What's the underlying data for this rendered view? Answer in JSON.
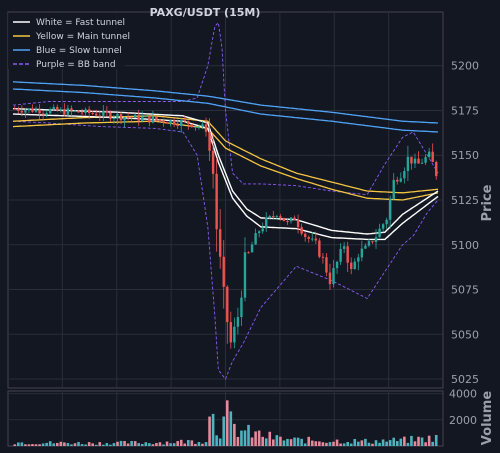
{
  "chart_data": {
    "type": "candlestick",
    "title": "PAXG/USDT (15M)",
    "price_label": "Price",
    "volume_label": "Volume",
    "ylim": [
      5020,
      5230
    ],
    "yticks": [
      5025,
      5050,
      5075,
      5100,
      5125,
      5150,
      5175,
      5200
    ],
    "vol_ylim": [
      0,
      4200
    ],
    "vol_ticks": [
      2000,
      4000
    ],
    "grid": true,
    "legend_position": "top-left",
    "legend": [
      {
        "label": "White = Fast tunnel",
        "color": "#ffffff",
        "dashed": false
      },
      {
        "label": "Yellow = Main tunnel",
        "color": "#f5c542",
        "dashed": false
      },
      {
        "label": "Blue = Slow tunnel",
        "color": "#4fa3f7",
        "dashed": false
      },
      {
        "label": "Purple = BB band",
        "color": "#8a5cf6",
        "dashed": true
      }
    ],
    "colors": {
      "up": "#26a69a",
      "down": "#ef5350",
      "vol_up": "#4fb3bf",
      "vol_down": "#e58a9a",
      "grid": "#2a2e39",
      "background": "#131722"
    },
    "n_bars": 120,
    "price_anchors": [
      [
        0,
        5176
      ],
      [
        20,
        5174
      ],
      [
        40,
        5170
      ],
      [
        50,
        5168
      ],
      [
        55,
        5165
      ],
      [
        57,
        5140
      ],
      [
        58,
        5110
      ],
      [
        60,
        5070
      ],
      [
        62,
        5045
      ],
      [
        64,
        5060
      ],
      [
        66,
        5090
      ],
      [
        68,
        5100
      ],
      [
        70,
        5108
      ],
      [
        72,
        5113
      ],
      [
        75,
        5118
      ],
      [
        78,
        5112
      ],
      [
        80,
        5115
      ],
      [
        83,
        5105
      ],
      [
        86,
        5100
      ],
      [
        88,
        5092
      ],
      [
        90,
        5080
      ],
      [
        92,
        5090
      ],
      [
        94,
        5100
      ],
      [
        96,
        5085
      ],
      [
        98,
        5095
      ],
      [
        100,
        5098
      ],
      [
        103,
        5105
      ],
      [
        106,
        5115
      ],
      [
        108,
        5135
      ],
      [
        110,
        5140
      ],
      [
        112,
        5148
      ],
      [
        115,
        5145
      ],
      [
        118,
        5150
      ],
      [
        120,
        5140
      ]
    ],
    "volume_anchors": [
      [
        0,
        300
      ],
      [
        20,
        250
      ],
      [
        40,
        300
      ],
      [
        50,
        400
      ],
      [
        54,
        500
      ],
      [
        56,
        3900
      ],
      [
        57,
        1800
      ],
      [
        58,
        1500
      ],
      [
        60,
        2500
      ],
      [
        62,
        1500
      ],
      [
        65,
        1200
      ],
      [
        70,
        900
      ],
      [
        75,
        600
      ],
      [
        80,
        500
      ],
      [
        90,
        450
      ],
      [
        100,
        400
      ],
      [
        110,
        500
      ],
      [
        120,
        700
      ]
    ],
    "tunnels": {
      "slow_upper": [
        [
          0,
          5191
        ],
        [
          20,
          5189
        ],
        [
          40,
          5186
        ],
        [
          55,
          5183
        ],
        [
          70,
          5178
        ],
        [
          90,
          5174
        ],
        [
          110,
          5169
        ],
        [
          120,
          5168
        ]
      ],
      "slow_lower": [
        [
          0,
          5187
        ],
        [
          20,
          5185
        ],
        [
          40,
          5182
        ],
        [
          55,
          5179
        ],
        [
          70,
          5173
        ],
        [
          90,
          5169
        ],
        [
          110,
          5164
        ],
        [
          120,
          5163
        ]
      ],
      "main_upper": [
        [
          0,
          5169
        ],
        [
          20,
          5171
        ],
        [
          40,
          5172
        ],
        [
          55,
          5169
        ],
        [
          60,
          5158
        ],
        [
          70,
          5148
        ],
        [
          80,
          5140
        ],
        [
          90,
          5135
        ],
        [
          100,
          5130
        ],
        [
          110,
          5129
        ],
        [
          120,
          5131
        ]
      ],
      "main_lower": [
        [
          0,
          5166
        ],
        [
          20,
          5168
        ],
        [
          40,
          5169
        ],
        [
          55,
          5165
        ],
        [
          60,
          5154
        ],
        [
          70,
          5144
        ],
        [
          80,
          5137
        ],
        [
          90,
          5131
        ],
        [
          100,
          5126
        ],
        [
          110,
          5125
        ],
        [
          120,
          5129
        ]
      ],
      "fast_upper": [
        [
          0,
          5176
        ],
        [
          30,
          5174
        ],
        [
          48,
          5172
        ],
        [
          55,
          5168
        ],
        [
          58,
          5150
        ],
        [
          62,
          5130
        ],
        [
          66,
          5120
        ],
        [
          70,
          5115
        ],
        [
          80,
          5114
        ],
        [
          90,
          5108
        ],
        [
          100,
          5106
        ],
        [
          105,
          5107
        ],
        [
          110,
          5117
        ],
        [
          120,
          5130
        ]
      ],
      "fast_lower": [
        [
          0,
          5173
        ],
        [
          30,
          5171
        ],
        [
          48,
          5169
        ],
        [
          55,
          5165
        ],
        [
          58,
          5146
        ],
        [
          62,
          5126
        ],
        [
          66,
          5116
        ],
        [
          70,
          5110
        ],
        [
          80,
          5109
        ],
        [
          90,
          5104
        ],
        [
          100,
          5103
        ],
        [
          105,
          5103
        ],
        [
          110,
          5112
        ],
        [
          120,
          5127
        ]
      ],
      "bb_upper": [
        [
          0,
          5178
        ],
        [
          10,
          5180
        ],
        [
          25,
          5180
        ],
        [
          40,
          5180
        ],
        [
          48,
          5180
        ],
        [
          52,
          5182
        ],
        [
          55,
          5200
        ],
        [
          57,
          5222
        ],
        [
          58,
          5224
        ],
        [
          59,
          5210
        ],
        [
          60,
          5175
        ],
        [
          62,
          5140
        ],
        [
          65,
          5134
        ],
        [
          70,
          5134
        ],
        [
          80,
          5133
        ],
        [
          90,
          5130
        ],
        [
          95,
          5129
        ],
        [
          100,
          5128
        ],
        [
          105,
          5145
        ],
        [
          110,
          5160
        ],
        [
          113,
          5163
        ],
        [
          117,
          5150
        ],
        [
          120,
          5140
        ]
      ],
      "bb_lower": [
        [
          0,
          5169
        ],
        [
          10,
          5168
        ],
        [
          25,
          5166
        ],
        [
          40,
          5165
        ],
        [
          48,
          5163
        ],
        [
          52,
          5150
        ],
        [
          55,
          5110
        ],
        [
          57,
          5060
        ],
        [
          58,
          5030
        ],
        [
          60,
          5025
        ],
        [
          62,
          5035
        ],
        [
          65,
          5045
        ],
        [
          70,
          5065
        ],
        [
          80,
          5088
        ],
        [
          90,
          5080
        ],
        [
          95,
          5075
        ],
        [
          100,
          5070
        ],
        [
          105,
          5085
        ],
        [
          110,
          5100
        ],
        [
          113,
          5105
        ],
        [
          117,
          5118
        ],
        [
          120,
          5125
        ]
      ]
    }
  }
}
